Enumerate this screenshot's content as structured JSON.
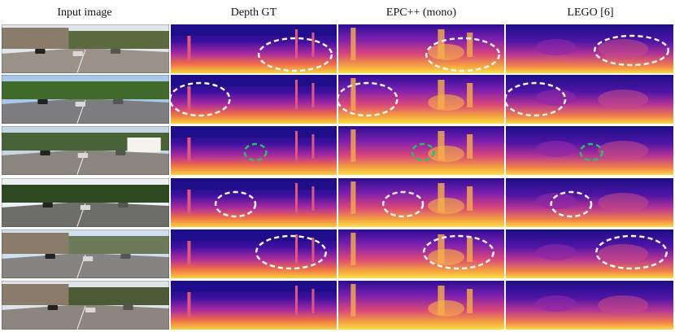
{
  "columns": [
    {
      "title": "Input image",
      "kind": "rgb"
    },
    {
      "title": "Depth GT",
      "kind": "gt"
    },
    {
      "title": "EPC++ (mono)",
      "kind": "epc"
    },
    {
      "title": "LEGO [6]",
      "kind": "lego"
    }
  ],
  "rows": [
    {
      "id": "row-1"
    },
    {
      "id": "row-2"
    },
    {
      "id": "row-3"
    },
    {
      "id": "row-4"
    },
    {
      "id": "row-5"
    },
    {
      "id": "row-6"
    }
  ],
  "colors": {
    "highlight_white": "#ffffff",
    "highlight_green": "#22c55e",
    "far_depth": "#1e0e8a",
    "mid_depth": "#8d1fa8",
    "near_depth": "#f7c23a"
  }
}
